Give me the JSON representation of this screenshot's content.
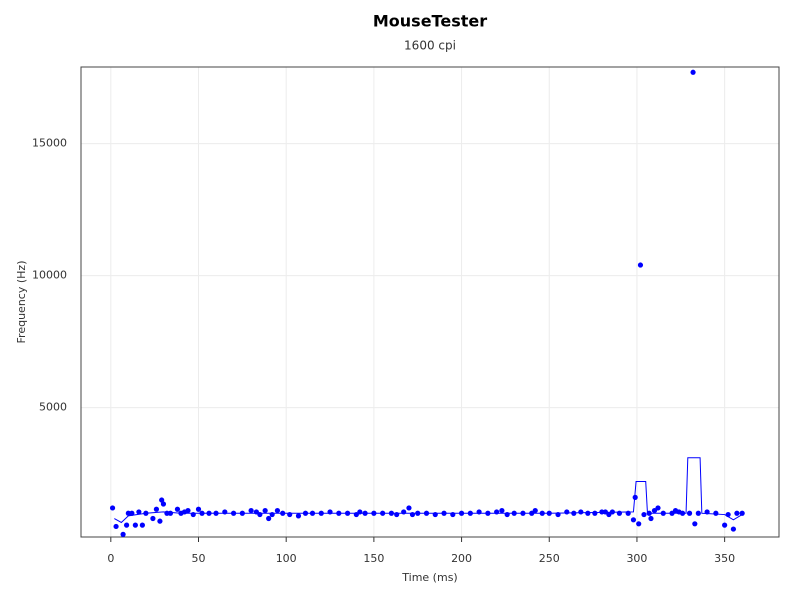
{
  "chart_data": {
    "type": "scatter",
    "title": "MouseTester",
    "subtitle": "1600 cpi",
    "x_label": "Time (ms)",
    "y_label": "Frequency (Hz)",
    "x": [
      1,
      3,
      7,
      9,
      10,
      12,
      14,
      16,
      18,
      20,
      24,
      26,
      28,
      29,
      30,
      32,
      34,
      38,
      40,
      42,
      44,
      47,
      50,
      52,
      56,
      60,
      65,
      70,
      75,
      80,
      83,
      85,
      88,
      90,
      92,
      95,
      98,
      102,
      107,
      111,
      115,
      120,
      125,
      130,
      135,
      140,
      142,
      145,
      150,
      155,
      160,
      163,
      167,
      170,
      172,
      175,
      180,
      185,
      190,
      195,
      200,
      205,
      210,
      215,
      220,
      223,
      226,
      230,
      235,
      240,
      242,
      246,
      250,
      255,
      260,
      264,
      268,
      272,
      276,
      280,
      282,
      284,
      286,
      290,
      295,
      298,
      299,
      301,
      302,
      304,
      307,
      308,
      310,
      312,
      315,
      320,
      322,
      324,
      326,
      330,
      332,
      333,
      335,
      340,
      345,
      350,
      352,
      355,
      357,
      360
    ],
    "values": [
      1200,
      500,
      200,
      550,
      1000,
      1000,
      550,
      1050,
      550,
      1000,
      800,
      1150,
      700,
      1500,
      1350,
      1000,
      1000,
      1150,
      1000,
      1050,
      1100,
      950,
      1150,
      1000,
      1000,
      1000,
      1050,
      1000,
      1000,
      1100,
      1050,
      950,
      1100,
      800,
      950,
      1100,
      1000,
      950,
      900,
      1000,
      1000,
      1000,
      1050,
      1000,
      1000,
      950,
      1050,
      1000,
      1000,
      1000,
      1000,
      950,
      1050,
      1200,
      950,
      1000,
      1000,
      950,
      1000,
      950,
      1000,
      1000,
      1050,
      1000,
      1050,
      1100,
      950,
      1000,
      1000,
      1000,
      1100,
      1000,
      1000,
      950,
      1050,
      1000,
      1050,
      1000,
      1000,
      1050,
      1050,
      950,
      1050,
      1000,
      1000,
      750,
      1600,
      600,
      10400,
      950,
      1000,
      800,
      1100,
      1200,
      1000,
      1000,
      1100,
      1050,
      1000,
      1000,
      17700,
      600,
      1000,
      1050,
      1000,
      550,
      950,
      400,
      1000,
      1000
    ],
    "color": "#0000ff",
    "line": {
      "x": [
        2,
        6,
        10,
        20,
        30,
        40,
        60,
        100,
        150,
        200,
        250,
        298,
        299.5,
        305,
        306,
        328,
        329,
        336,
        337,
        350,
        355,
        360
      ],
      "values": [
        800,
        650,
        900,
        1000,
        1050,
        1000,
        1000,
        1000,
        1000,
        1000,
        1000,
        1050,
        2200,
        2200,
        1000,
        1000,
        3100,
        3100,
        1000,
        950,
        750,
        950
      ],
      "color": "#0000ff"
    },
    "xlim": [
      -17,
      381
    ],
    "ylim": [
      100,
      17900
    ],
    "xticks": [
      0,
      50,
      100,
      150,
      200,
      250,
      300,
      350
    ],
    "yticks": [
      5000,
      10000,
      15000
    ],
    "grid": true
  }
}
